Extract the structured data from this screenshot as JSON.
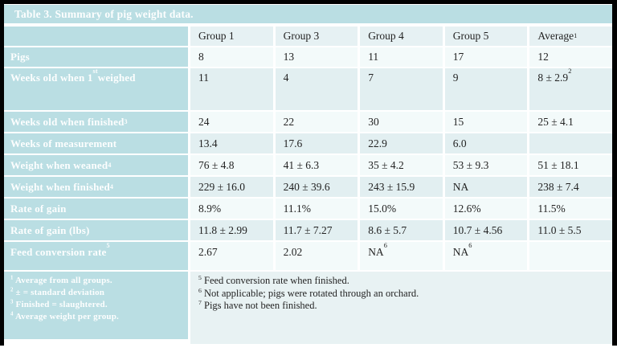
{
  "title": "Table 3. Summary of pig weight data.",
  "table": {
    "column_headers": [
      "",
      "Group 1",
      "Group 3",
      "Group 4",
      "Group 5",
      "Average^{1}"
    ],
    "rows": [
      {
        "label": "Pigs",
        "values": [
          "8",
          "13",
          "11",
          "17",
          "12"
        ]
      },
      {
        "label": "Weeks old when 1^{st} weighed",
        "values": [
          "11",
          "4",
          "7",
          "9",
          "8 ± 2.9^{2}"
        ]
      },
      {
        "label": "Weeks old when finished^{3}",
        "values": [
          "24",
          "22",
          "30",
          "15",
          "25 ± 4.1"
        ]
      },
      {
        "label": "Weeks of measurement",
        "values": [
          "13.4",
          "17.6",
          "22.9",
          "6.0",
          ""
        ]
      },
      {
        "label": "Weight when weaned^{4}",
        "values": [
          "76 ± 4.8",
          "41 ± 6.3",
          "35 ± 4.2",
          "53 ± 9.3",
          "51 ± 18.1"
        ]
      },
      {
        "label": "Weight when finished^{4}",
        "values": [
          "229 ± 16.0",
          "240 ± 39.6",
          "243 ± 15.9",
          "NA",
          "238 ± 7.4"
        ]
      },
      {
        "label": "Rate of gain",
        "values": [
          "8.9%",
          "11.1%",
          "15.0%",
          "12.6%",
          "11.5%"
        ]
      },
      {
        "label": "Rate of gain (lbs)",
        "values": [
          "11.8 ± 2.99",
          "11.7 ± 7.27",
          "8.6 ± 5.7",
          "10.7 ± 4.56",
          "11.0 ± 5.5"
        ]
      },
      {
        "label": "Feed conversion rate^{5}",
        "values": [
          "2.67",
          "2.02",
          "NA^{6}",
          "NA^{6}",
          ""
        ]
      }
    ],
    "footnotes_left": [
      "^{1} Average from all groups.",
      "^{2} ± = standard deviation",
      "^{3} Finished = slaughtered.",
      "^{4} Average weight per group."
    ],
    "footnotes_right": [
      "^{5} Feed conversion rate when finished.",
      "^{6} Not applicable; pigs were rotated through an orchard.",
      "^{7} Pigs have not been finished."
    ]
  },
  "colors": {
    "header_teal": "#badee3",
    "column_header_bg": "#e6f1f3",
    "band_tint": "#e2eff1",
    "band_light": "#f3fafa",
    "footnote_right_bg": "#e8f2f3",
    "text_ink": "#232323",
    "frame_black": "#010101",
    "label_text": "#fdfefe"
  }
}
